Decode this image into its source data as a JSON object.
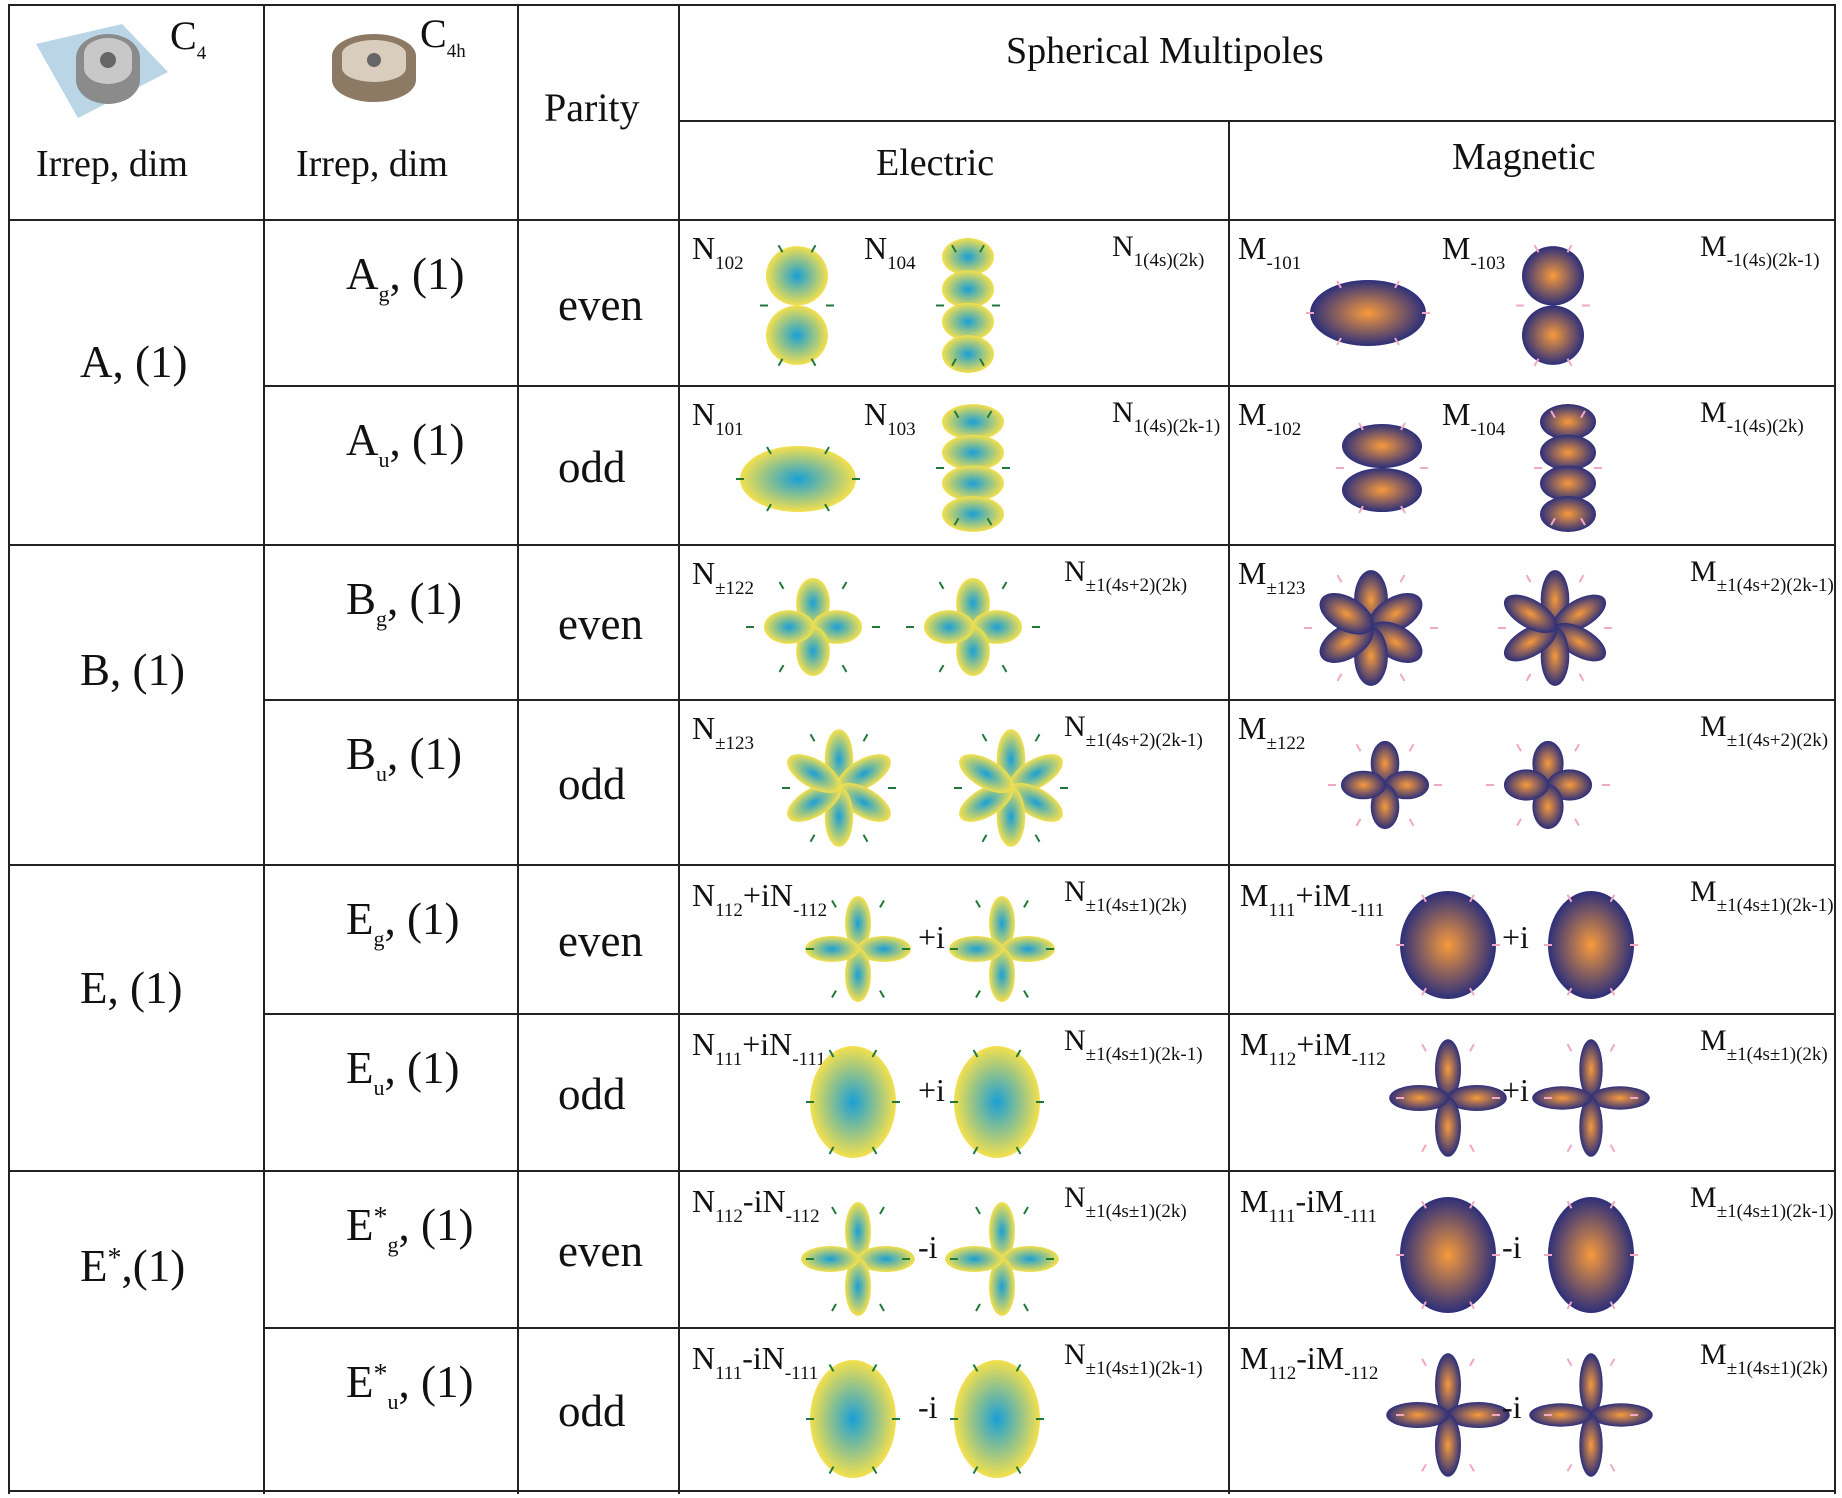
{
  "header": {
    "c4_sym": "C",
    "c4_sub": "4",
    "c4h_sym": "C",
    "c4h_sub": "4h",
    "irrep_dim": "Irrep, dim",
    "parity": "Parity",
    "spherical": "Spherical Multipoles",
    "electric": "Electric",
    "magnetic": "Magnetic"
  },
  "groups": [
    {
      "sym": "A",
      "sup": "",
      "dim": ", (1)"
    },
    {
      "sym": "B",
      "sup": "",
      "dim": ", (1)"
    },
    {
      "sym": "E",
      "sup": "",
      "dim": ", (1)"
    },
    {
      "sym": "E",
      "sup": "*",
      "dim": ",(1)"
    }
  ],
  "rows": [
    {
      "irrep": "A",
      "sub": "g",
      "sup": "",
      "dim": ", (1)",
      "parity": "even",
      "e1": {
        "m": "N",
        "s": "102"
      },
      "e2": {
        "m": "N",
        "s": "104"
      },
      "eg": {
        "m": "N",
        "s": "1(4s)(2k)"
      },
      "m1": {
        "m": "M",
        "s": "-101"
      },
      "m2": {
        "m": "M",
        "s": "-103"
      },
      "mg": {
        "m": "M",
        "s": "-1(4s)(2k-1)"
      },
      "pre": ""
    },
    {
      "irrep": "A",
      "sub": "u",
      "sup": "",
      "dim": ", (1)",
      "parity": "odd",
      "e1": {
        "m": "N",
        "s": "101"
      },
      "e2": {
        "m": "N",
        "s": "103"
      },
      "eg": {
        "m": "N",
        "s": "1(4s)(2k-1)"
      },
      "m1": {
        "m": "M",
        "s": "-102"
      },
      "m2": {
        "m": "M",
        "s": "-104"
      },
      "mg": {
        "m": "M",
        "s": "-1(4s)(2k)"
      },
      "pre": ""
    },
    {
      "irrep": "B",
      "sub": "g",
      "sup": "",
      "dim": ", (1)",
      "parity": "even",
      "e1": {
        "m": "N",
        "s": "±122"
      },
      "eg": {
        "m": "N",
        "s": "±1(4s+2)(2k)"
      },
      "m1": {
        "m": "M",
        "s": "±123"
      },
      "mg": {
        "m": "M",
        "s": "±1(4s+2)(2k-1)"
      },
      "pre": ""
    },
    {
      "irrep": "B",
      "sub": "u",
      "sup": "",
      "dim": ", (1)",
      "parity": "odd",
      "e1": {
        "m": "N",
        "s": "±123"
      },
      "eg": {
        "m": "N",
        "s": "±1(4s+2)(2k-1)"
      },
      "m1": {
        "m": "M",
        "s": "±122"
      },
      "mg": {
        "m": "M",
        "s": "±1(4s+2)(2k)"
      },
      "pre": ""
    },
    {
      "irrep": "E",
      "sub": "g",
      "sup": "",
      "dim": ", (1)",
      "parity": "even",
      "ec": {
        "a": "N",
        "as": "112",
        "op": "+i",
        "b": "N",
        "bs": "-112"
      },
      "eg": {
        "m": "N",
        "s": "±1(4s±1)(2k)"
      },
      "mc": {
        "a": "M",
        "as": "111",
        "op": "+i",
        "b": "M",
        "bs": "-111"
      },
      "mg": {
        "m": "M",
        "s": "±1(4s±1)(2k-1)"
      },
      "pre": "+i"
    },
    {
      "irrep": "E",
      "sub": "u",
      "sup": "",
      "dim": ", (1)",
      "parity": "odd",
      "ec": {
        "a": "N",
        "as": "111",
        "op": "+i",
        "b": "N",
        "bs": "-111"
      },
      "eg": {
        "m": "N",
        "s": "±1(4s±1)(2k-1)"
      },
      "mc": {
        "a": "M",
        "as": "112",
        "op": "+i",
        "b": "M",
        "bs": "-112"
      },
      "mg": {
        "m": "M",
        "s": "±1(4s±1)(2k)"
      },
      "pre": "+i"
    },
    {
      "irrep": "E",
      "sub": "g",
      "sup": "*",
      "dim": ", (1)",
      "parity": "even",
      "ec": {
        "a": "N",
        "as": "112",
        "op": "-i",
        "b": "N",
        "bs": "-112"
      },
      "eg": {
        "m": "N",
        "s": "±1(4s±1)(2k)"
      },
      "mc": {
        "a": "M",
        "as": "111",
        "op": "-i",
        "b": "M",
        "bs": "-111"
      },
      "mg": {
        "m": "M",
        "s": "±1(4s±1)(2k-1)"
      },
      "pre": "-i"
    },
    {
      "irrep": "E",
      "sub": "u",
      "sup": "*",
      "dim": ", (1)",
      "parity": "odd",
      "ec": {
        "a": "N",
        "as": "111",
        "op": "-i",
        "b": "N",
        "bs": "-111"
      },
      "eg": {
        "m": "N",
        "s": "±1(4s±1)(2k-1)"
      },
      "mc": {
        "a": "M",
        "as": "112",
        "op": "-i",
        "b": "M",
        "bs": "-112"
      },
      "mg": {
        "m": "M",
        "s": "±1(4s±1)(2k)"
      },
      "pre": "-i"
    }
  ],
  "colors": {
    "electric_hi": "#f4e04d",
    "electric_lo": "#1a9fd6",
    "magnetic_hi": "#f79a3c",
    "magnetic_lo": "#2d2f7a",
    "arrow_e": "#1f7a3a",
    "arrow_m": "#f2a7c3"
  }
}
